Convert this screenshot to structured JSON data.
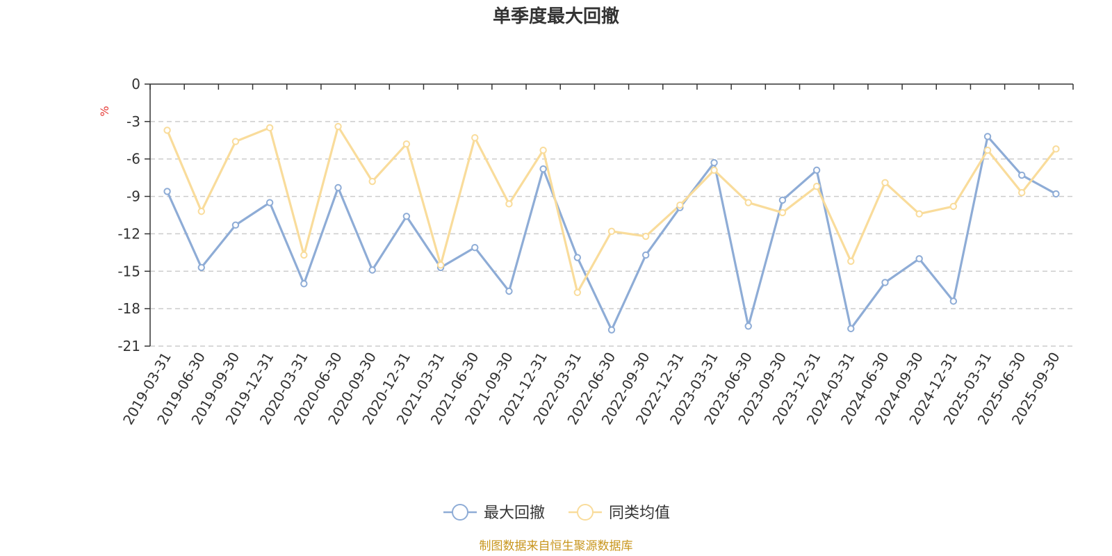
{
  "chart_data": {
    "type": "line",
    "title": "单季度最大回撤",
    "ylabel": "%",
    "ylim": [
      -21,
      0
    ],
    "yticks": [
      0,
      -3,
      -6,
      -9,
      -12,
      -15,
      -18,
      -21
    ],
    "grid": true,
    "legend_position": "bottom-center",
    "categories": [
      "2019-03-31",
      "2019-06-30",
      "2019-09-30",
      "2019-12-31",
      "2020-03-31",
      "2020-06-30",
      "2020-09-30",
      "2020-12-31",
      "2021-03-31",
      "2021-06-30",
      "2021-09-30",
      "2021-12-31",
      "2022-03-31",
      "2022-06-30",
      "2022-09-30",
      "2022-12-31",
      "2023-03-31",
      "2023-06-30",
      "2023-09-30",
      "2023-12-31",
      "2024-03-31",
      "2024-06-30",
      "2024-09-30",
      "2024-12-31",
      "2025-03-31",
      "2025-06-30",
      "2025-09-30"
    ],
    "series": [
      {
        "name": "最大回撤",
        "color": "#8eacd6",
        "values": [
          -8.6,
          -14.7,
          -11.3,
          -9.5,
          -16.0,
          -8.3,
          -14.9,
          -10.6,
          -14.7,
          -13.1,
          -16.6,
          -6.8,
          -13.9,
          -19.7,
          -13.7,
          -9.9,
          -6.3,
          -19.4,
          -9.3,
          -6.9,
          -19.6,
          -15.9,
          -14.0,
          -17.4,
          -4.2,
          -7.3,
          -8.8
        ]
      },
      {
        "name": "同类均值",
        "color": "#f9dc9b",
        "values": [
          -3.7,
          -10.2,
          -4.6,
          -3.5,
          -13.7,
          -3.4,
          -7.8,
          -4.8,
          -14.5,
          -4.3,
          -9.6,
          -5.3,
          -16.7,
          -11.8,
          -12.2,
          -9.7,
          -6.9,
          -9.5,
          -10.3,
          -8.2,
          -14.2,
          -7.9,
          -10.4,
          -9.8,
          -5.3,
          -8.7,
          -5.2
        ]
      }
    ],
    "unit_color": "#e53935"
  },
  "footer": {
    "source": "制图数据来自恒生聚源数据库",
    "source_color": "#c8961e"
  }
}
